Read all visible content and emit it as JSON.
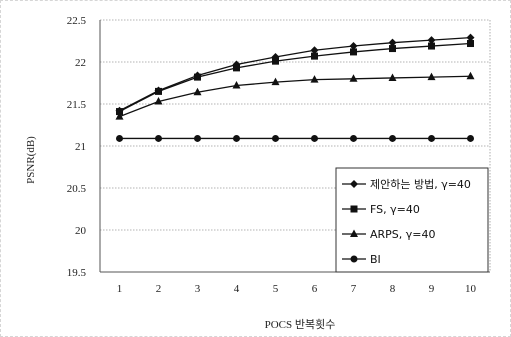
{
  "chart_data": {
    "type": "line",
    "title": "",
    "xlabel": "POCS 반복횟수",
    "ylabel": "PSNR(dB)",
    "x": [
      1,
      2,
      3,
      4,
      5,
      6,
      7,
      8,
      9,
      10
    ],
    "ylim": [
      19.5,
      22.5
    ],
    "yticks": [
      "19.5",
      "20",
      "20.5",
      "21",
      "21.5",
      "22",
      "22.5"
    ],
    "grid": true,
    "legend_position": "bottom-right",
    "series": [
      {
        "name": "제안하는 방법, γ=40",
        "marker": "diamond",
        "values": [
          21.42,
          21.66,
          21.84,
          21.97,
          22.06,
          22.14,
          22.19,
          22.23,
          22.26,
          22.29
        ]
      },
      {
        "name": "FS, γ=40",
        "marker": "square",
        "values": [
          21.41,
          21.65,
          21.82,
          21.93,
          22.01,
          22.07,
          22.12,
          22.16,
          22.19,
          22.22
        ]
      },
      {
        "name": "ARPS, γ=40",
        "marker": "triangle",
        "values": [
          21.35,
          21.53,
          21.64,
          21.72,
          21.76,
          21.79,
          21.8,
          21.81,
          21.82,
          21.83
        ]
      },
      {
        "name": "BI",
        "marker": "circle",
        "values": [
          21.09,
          21.09,
          21.09,
          21.09,
          21.09,
          21.09,
          21.09,
          21.09,
          21.09,
          21.09
        ]
      }
    ]
  }
}
